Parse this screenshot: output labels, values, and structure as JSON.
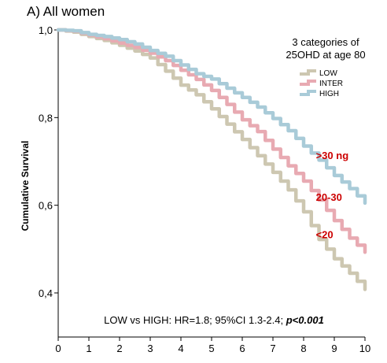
{
  "chart_data": {
    "type": "line",
    "title": "A) All women",
    "ylabel": "Cumulative Survival",
    "xlabel": "",
    "xlim": [
      0,
      10
    ],
    "ylim": [
      0.4,
      1.0
    ],
    "xticks": [
      "0",
      "1",
      "2",
      "3",
      "4",
      "5",
      "6",
      "7",
      "8",
      "9",
      "10"
    ],
    "yticks": [
      {
        "value": 1.0,
        "label": "1,0"
      },
      {
        "value": 0.8,
        "label": "0,8"
      },
      {
        "value": 0.6,
        "label": "0,6"
      },
      {
        "value": 0.4,
        "label": "0,4"
      }
    ],
    "legend": {
      "title_line1": "3 categories of",
      "title_line2": "25OHD at age 80",
      "placement": "top-right"
    },
    "series": [
      {
        "name": "LOW",
        "color": "#cdc7b1",
        "x": [
          0,
          0.5,
          1,
          1.5,
          2,
          2.5,
          3,
          3.5,
          4,
          4.5,
          5,
          5.5,
          6,
          6.5,
          7,
          7.5,
          8,
          8.5,
          9,
          9.5,
          10
        ],
        "y": [
          1.0,
          0.995,
          0.985,
          0.976,
          0.965,
          0.952,
          0.936,
          0.906,
          0.874,
          0.852,
          0.82,
          0.785,
          0.75,
          0.713,
          0.675,
          0.635,
          0.585,
          0.522,
          0.478,
          0.445,
          0.408
        ]
      },
      {
        "name": "INTER",
        "color": "#e8aab2",
        "x": [
          0,
          0.5,
          1,
          1.5,
          2,
          2.5,
          3,
          3.5,
          4,
          4.5,
          5,
          5.5,
          6,
          6.5,
          7,
          7.5,
          8,
          8.5,
          9,
          9.5,
          10
        ],
        "y": [
          1.0,
          0.997,
          0.988,
          0.98,
          0.97,
          0.96,
          0.947,
          0.93,
          0.908,
          0.887,
          0.862,
          0.83,
          0.795,
          0.768,
          0.728,
          0.69,
          0.655,
          0.612,
          0.565,
          0.525,
          0.493
        ]
      },
      {
        "name": "HIGH",
        "color": "#a9cbd8",
        "x": [
          0,
          0.5,
          1,
          1.5,
          2,
          2.5,
          3,
          3.5,
          4,
          4.5,
          5,
          5.5,
          6,
          6.5,
          7,
          7.5,
          8,
          8.5,
          9,
          9.5,
          10
        ],
        "y": [
          1.0,
          0.998,
          0.99,
          0.985,
          0.978,
          0.968,
          0.953,
          0.94,
          0.92,
          0.9,
          0.888,
          0.867,
          0.846,
          0.824,
          0.798,
          0.77,
          0.735,
          0.703,
          0.668,
          0.638,
          0.605
        ]
      }
    ],
    "annotations": [
      {
        "text": ">30 ng",
        "x": 8.4,
        "y": 0.705,
        "color": "#cc0000"
      },
      {
        "text": "20-30",
        "x": 8.4,
        "y": 0.61,
        "color": "#cc0000"
      },
      {
        "text": "<20",
        "x": 8.4,
        "y": 0.525,
        "color": "#cc0000"
      }
    ],
    "stat_text": {
      "prefix": "LOW vs HIGH: HR=1.8; 95%CI 1.3-2.4; ",
      "pvalue": "p<0.001"
    },
    "grid": false
  }
}
